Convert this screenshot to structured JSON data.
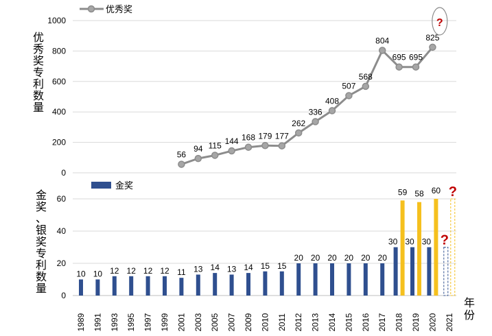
{
  "chart_data": [
    {
      "type": "line",
      "legend": "优秀奖",
      "ylabel": "优秀奖专利数量",
      "ylim": [
        0,
        1000
      ],
      "yticks": [
        "0",
        "200",
        "400",
        "600",
        "800",
        "1000"
      ],
      "categories": [
        "2001",
        "2003",
        "2005",
        "2007",
        "2009",
        "2010",
        "2011",
        "2012",
        "2013",
        "2014",
        "2015",
        "2016",
        "2017",
        "2018",
        "2019",
        "2020"
      ],
      "values": [
        56,
        94,
        115,
        144,
        168,
        179,
        177,
        262,
        336,
        408,
        507,
        568,
        804,
        695,
        695,
        825
      ],
      "pending_label": "?",
      "colors": {
        "line": "#8c8c8c",
        "marker": "#a6a6a6",
        "pending_ellipse": "#8c8c8c"
      }
    },
    {
      "type": "bar",
      "legend": "金奖",
      "ylabel": "金奖、银奖专利数量",
      "ylim": [
        0,
        60
      ],
      "yticks": [
        "0",
        "20",
        "40",
        "60"
      ],
      "xlabel": "年份",
      "categories": [
        "1989",
        "1991",
        "1993",
        "1995",
        "1997",
        "1999",
        "2001",
        "2003",
        "2005",
        "2007",
        "2009",
        "2010",
        "2011",
        "2012",
        "2013",
        "2014",
        "2015",
        "2016",
        "2017",
        "2018",
        "2019",
        "2020",
        "2021"
      ],
      "series": [
        {
          "name": "金奖",
          "color": "#2f4f8f",
          "values": [
            10,
            10,
            12,
            12,
            12,
            12,
            11,
            13,
            14,
            13,
            14,
            15,
            15,
            20,
            20,
            20,
            20,
            20,
            20,
            30,
            30,
            30,
            null
          ]
        },
        {
          "name": "银奖",
          "color": "#f5c01e",
          "values": [
            null,
            null,
            null,
            null,
            null,
            null,
            null,
            null,
            null,
            null,
            null,
            null,
            null,
            null,
            null,
            null,
            null,
            null,
            null,
            59,
            58,
            60,
            null
          ]
        }
      ],
      "pending_label": "?"
    }
  ]
}
